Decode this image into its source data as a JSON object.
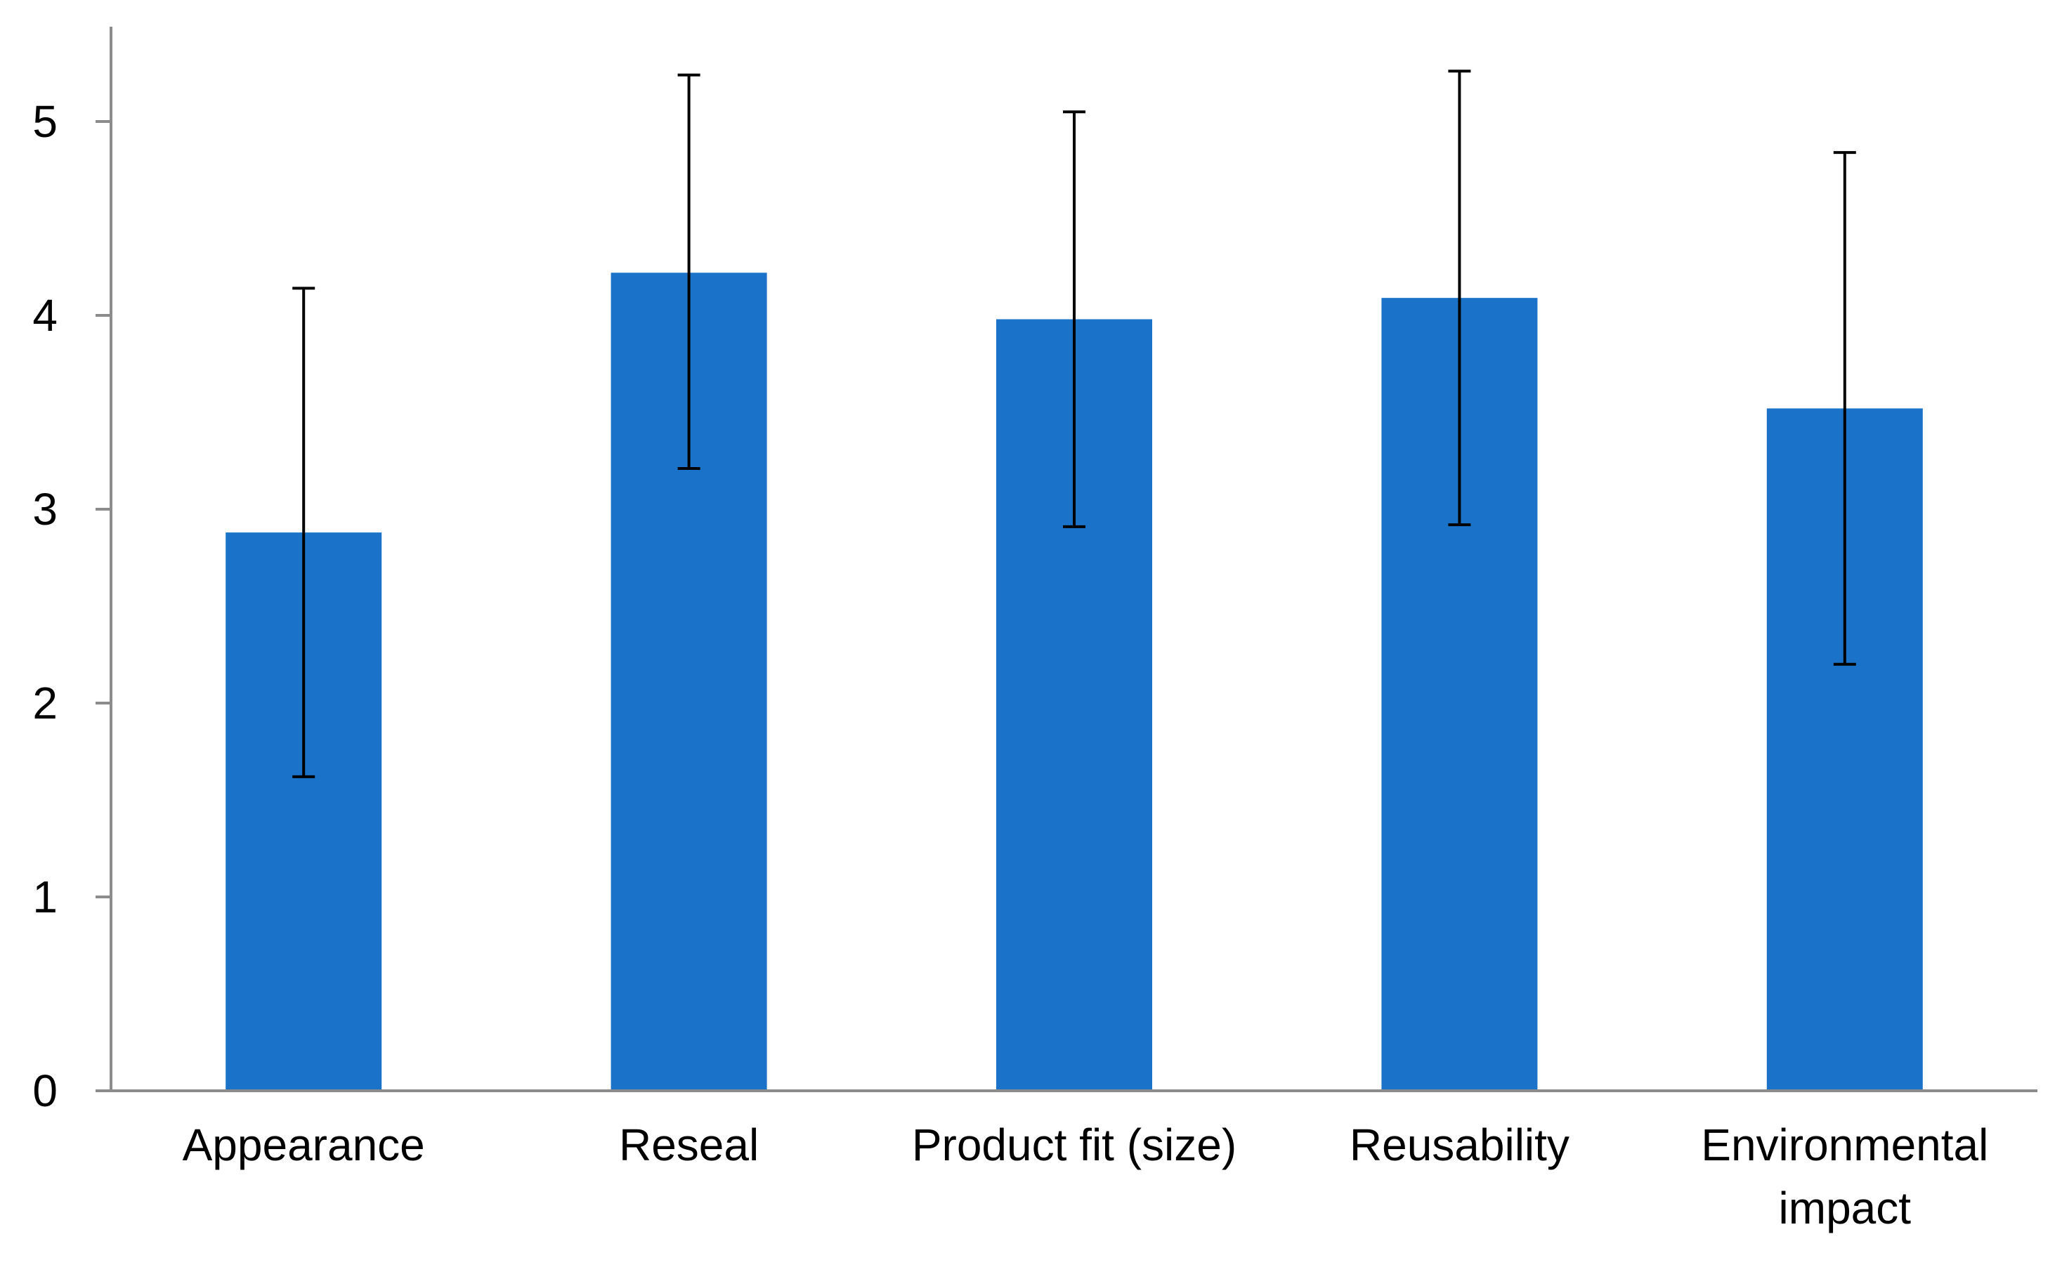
{
  "chart_data": {
    "type": "bar",
    "title": "",
    "xlabel": "",
    "ylabel": "",
    "ylim": [
      0,
      5.5
    ],
    "yticks": [
      0,
      1,
      2,
      3,
      4,
      5
    ],
    "grid": false,
    "legend": "none",
    "categories": [
      [
        "Appearance"
      ],
      [
        "Reseal"
      ],
      [
        "Product fit (size)"
      ],
      [
        "Reusability"
      ],
      [
        "Environmental",
        "impact"
      ]
    ],
    "values": [
      2.88,
      4.22,
      3.98,
      4.09,
      3.52
    ],
    "error_low": [
      1.62,
      3.21,
      2.91,
      2.92,
      2.2
    ],
    "error_high": [
      4.14,
      5.24,
      5.05,
      5.26,
      4.84
    ],
    "bar_color": "#1a73c8",
    "axis_color": "#8c8c8c",
    "error_color": "#000000"
  }
}
